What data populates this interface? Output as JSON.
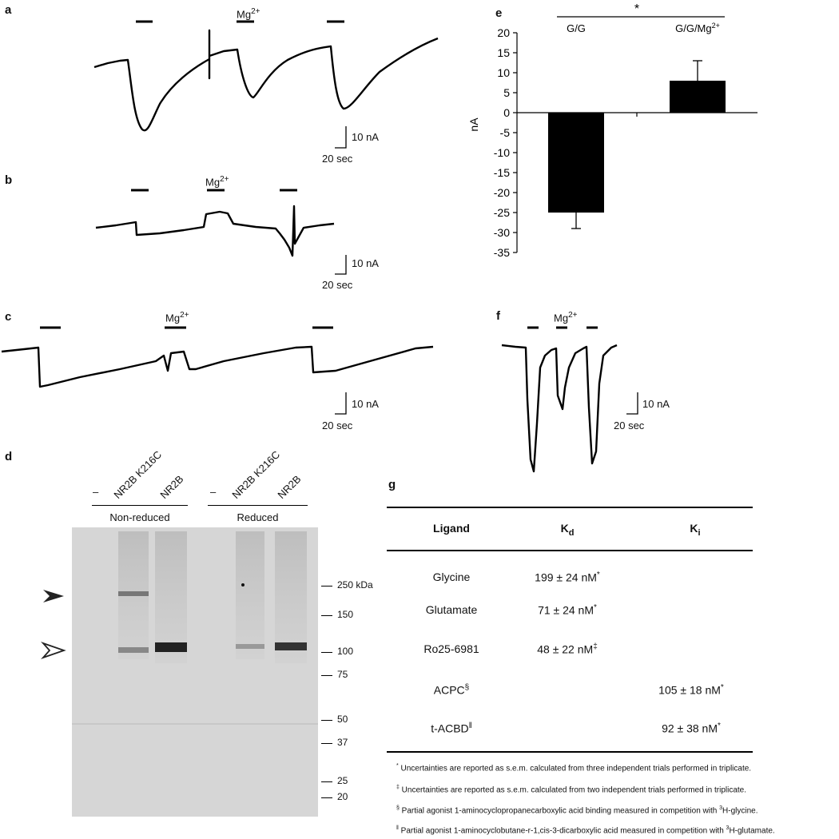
{
  "panels": {
    "a": "a",
    "b": "b",
    "c": "c",
    "d": "d",
    "e": "e",
    "f": "f",
    "g": "g"
  },
  "mg_label": "Mg",
  "mg_sup": "2+",
  "scale": {
    "y": "10 nA",
    "x": "20 sec"
  },
  "chart_data": {
    "type": "bar",
    "categories": [
      "G/G",
      "G/G/Mg2+"
    ],
    "values": [
      -25,
      8
    ],
    "errors": [
      4,
      5
    ],
    "ylabel": "nA",
    "ylim": [
      -35,
      20
    ],
    "yticks": [
      20,
      15,
      10,
      5,
      0,
      -5,
      -10,
      -15,
      -20,
      -25,
      -30,
      -35
    ],
    "significance": "*"
  },
  "gel": {
    "lanes": [
      "–",
      "NR2B K216C",
      "NR2B",
      "–",
      "NR2B K216C",
      "NR2B"
    ],
    "groups": [
      "Non-reduced",
      "Reduced"
    ],
    "markers": [
      {
        "label": "250 kDa",
        "value": 250
      },
      {
        "label": "150",
        "value": 150
      },
      {
        "label": "100",
        "value": 100
      },
      {
        "label": "75",
        "value": 75
      },
      {
        "label": "50",
        "value": 50
      },
      {
        "label": "37",
        "value": 37
      },
      {
        "label": "25",
        "value": 25
      },
      {
        "label": "20",
        "value": 20
      }
    ]
  },
  "table": {
    "headers": {
      "ligand": "Ligand",
      "kd": "K",
      "kd_sub": "d",
      "ki": "K",
      "ki_sub": "i"
    },
    "rows": [
      {
        "ligand": "Glycine",
        "ligand_sup": "",
        "kd": "199 ± 24 nM",
        "kd_sup": "*",
        "ki": "",
        "ki_sup": ""
      },
      {
        "ligand": "Glutamate",
        "ligand_sup": "",
        "kd": "71 ± 24 nM",
        "kd_sup": "*",
        "ki": "",
        "ki_sup": ""
      },
      {
        "ligand": "Ro25-6981",
        "ligand_sup": "",
        "kd": "48 ± 22 nM",
        "kd_sup": "‡",
        "ki": "",
        "ki_sup": ""
      },
      {
        "ligand": "ACPC",
        "ligand_sup": "§",
        "kd": "",
        "kd_sup": "",
        "ki": "105 ± 18 nM",
        "ki_sup": "*"
      },
      {
        "ligand": "t-ACBD",
        "ligand_sup": "ǁ",
        "kd": "",
        "kd_sup": "",
        "ki": "92 ± 38 nM",
        "ki_sup": "*"
      }
    ],
    "footnotes": [
      {
        "sym": "*",
        "text": "Uncertainties are reported as s.e.m. calculated from three independent trials performed in triplicate."
      },
      {
        "sym": "‡",
        "text": "Uncertainties are reported as s.e.m. calculated from two independent trials performed in triplicate."
      },
      {
        "sym": "§",
        "text": "Partial agonist 1-aminocyclopropanecarboxylic acid binding measured in competition with ",
        "sup2": "3",
        "tail": "H-glycine."
      },
      {
        "sym": "ǁ",
        "text": "Partial agonist 1-aminocyclobutane-r-1,cis-3-dicarboxylic acid measured in competition with ",
        "sup2": "3",
        "tail": "H-glutamate."
      }
    ]
  }
}
